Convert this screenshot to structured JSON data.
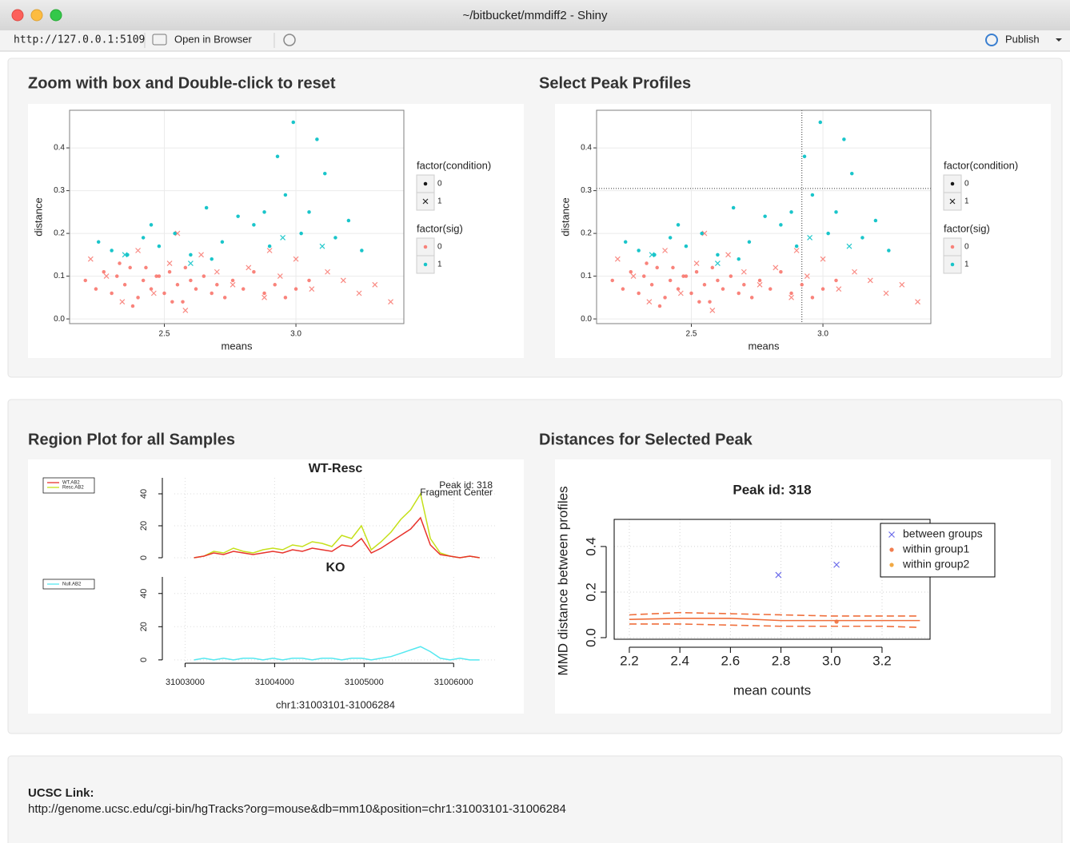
{
  "window": {
    "title": "~/bitbucket/mmdiff2 - Shiny"
  },
  "toolbar": {
    "url": "http://127.0.0.1:5109",
    "open_in_browser": "Open in Browser",
    "publish": "Publish"
  },
  "headings": [
    "Zoom with box and Double-click to reset",
    "Select Peak Profiles",
    "Region Plot for all Samples",
    "Distances for Selected Peak"
  ],
  "chart_data": [
    {
      "type": "scatter",
      "xlabel": "means",
      "ylabel": "distance",
      "xlim": [
        2.14,
        3.41
      ],
      "ylim": [
        -0.011,
        0.488
      ],
      "xticks": [
        2.5,
        {
          "value": 3,
          "label": "3.0"
        }
      ],
      "yticks": [
        {
          "value": 0,
          "label": "0.0"
        },
        0.1,
        0.2,
        0.3,
        0.4
      ],
      "grid": true,
      "series": [
        {
          "color": "#f8766d",
          "shape": "dot",
          "x": [
            2.2,
            2.24,
            2.27,
            2.3,
            2.32,
            2.35,
            2.37,
            2.4,
            2.42,
            2.45,
            2.47,
            2.5,
            2.52,
            2.55,
            2.57,
            2.6,
            2.62,
            2.65,
            2.68,
            2.7,
            2.73,
            2.76,
            2.8,
            2.84,
            2.88,
            2.92,
            2.96,
            3.0,
            3.05,
            2.33,
            2.38,
            2.43,
            2.48,
            2.53,
            2.58
          ],
          "y": [
            0.09,
            0.07,
            0.11,
            0.06,
            0.1,
            0.08,
            0.12,
            0.05,
            0.09,
            0.07,
            0.1,
            0.06,
            0.11,
            0.08,
            0.04,
            0.09,
            0.07,
            0.1,
            0.06,
            0.08,
            0.05,
            0.09,
            0.07,
            0.11,
            0.06,
            0.08,
            0.05,
            0.07,
            0.09,
            0.13,
            0.03,
            0.12,
            0.1,
            0.04,
            0.12
          ]
        },
        {
          "color": "#f8766d",
          "shape": "cross",
          "x": [
            2.22,
            2.28,
            2.34,
            2.4,
            2.46,
            2.52,
            2.58,
            2.64,
            2.7,
            2.76,
            2.82,
            2.88,
            2.94,
            3.0,
            3.06,
            3.12,
            3.18,
            3.24,
            3.3,
            3.36,
            2.55,
            2.9
          ],
          "y": [
            0.14,
            0.1,
            0.04,
            0.16,
            0.06,
            0.13,
            0.02,
            0.15,
            0.11,
            0.08,
            0.12,
            0.05,
            0.1,
            0.14,
            0.07,
            0.11,
            0.09,
            0.06,
            0.08,
            0.04,
            0.2,
            0.16
          ]
        },
        {
          "color": "#00bfc4",
          "shape": "dot",
          "x": [
            2.25,
            2.3,
            2.36,
            2.42,
            2.48,
            2.54,
            2.6,
            2.66,
            2.72,
            2.78,
            2.84,
            2.9,
            2.93,
            2.96,
            2.99,
            3.02,
            3.05,
            3.08,
            3.11,
            3.15,
            3.2,
            3.25,
            2.68,
            2.88,
            2.45
          ],
          "y": [
            0.18,
            0.16,
            0.15,
            0.19,
            0.17,
            0.2,
            0.15,
            0.26,
            0.18,
            0.24,
            0.22,
            0.17,
            0.38,
            0.29,
            0.46,
            0.2,
            0.25,
            0.42,
            0.34,
            0.19,
            0.23,
            0.16,
            0.14,
            0.25,
            0.22
          ]
        },
        {
          "color": "#00bfc4",
          "shape": "cross",
          "x": [
            2.35,
            2.6,
            2.95,
            3.1
          ],
          "y": [
            0.15,
            0.13,
            0.19,
            0.17
          ]
        }
      ],
      "legend": [
        {
          "title": "factor(condition)",
          "items": [
            {
              "label": "0",
              "shape": "dot"
            },
            {
              "label": "1",
              "shape": "cross"
            }
          ]
        },
        {
          "title": "factor(sig)",
          "items": [
            {
              "label": "0",
              "color": "#f8766d"
            },
            {
              "label": "1",
              "color": "#00bfc4"
            }
          ]
        }
      ]
    },
    {
      "type": "scatter",
      "xlabel": "means",
      "ylabel": "distance",
      "xlim": [
        2.14,
        3.41
      ],
      "ylim": [
        -0.011,
        0.488
      ],
      "xticks": [
        2.5,
        {
          "value": 3,
          "label": "3.0"
        }
      ],
      "yticks": [
        {
          "value": 0,
          "label": "0.0"
        },
        0.1,
        0.2,
        0.3,
        0.4
      ],
      "grid": true,
      "crosshair": {
        "x": 2.92,
        "y": 0.305
      },
      "series": [
        {
          "color": "#f8766d",
          "shape": "dot",
          "x": [
            2.2,
            2.24,
            2.27,
            2.3,
            2.32,
            2.35,
            2.37,
            2.4,
            2.42,
            2.45,
            2.47,
            2.5,
            2.52,
            2.55,
            2.57,
            2.6,
            2.62,
            2.65,
            2.68,
            2.7,
            2.73,
            2.76,
            2.8,
            2.84,
            2.88,
            2.92,
            2.96,
            3.0,
            3.05,
            2.33,
            2.38,
            2.43,
            2.48,
            2.53,
            2.58
          ],
          "y": [
            0.09,
            0.07,
            0.11,
            0.06,
            0.1,
            0.08,
            0.12,
            0.05,
            0.09,
            0.07,
            0.1,
            0.06,
            0.11,
            0.08,
            0.04,
            0.09,
            0.07,
            0.1,
            0.06,
            0.08,
            0.05,
            0.09,
            0.07,
            0.11,
            0.06,
            0.08,
            0.05,
            0.07,
            0.09,
            0.13,
            0.03,
            0.12,
            0.1,
            0.04,
            0.12
          ]
        },
        {
          "color": "#f8766d",
          "shape": "cross",
          "x": [
            2.22,
            2.28,
            2.34,
            2.4,
            2.46,
            2.52,
            2.58,
            2.64,
            2.7,
            2.76,
            2.82,
            2.88,
            2.94,
            3.0,
            3.06,
            3.12,
            3.18,
            3.24,
            3.3,
            3.36,
            2.55,
            2.9
          ],
          "y": [
            0.14,
            0.1,
            0.04,
            0.16,
            0.06,
            0.13,
            0.02,
            0.15,
            0.11,
            0.08,
            0.12,
            0.05,
            0.1,
            0.14,
            0.07,
            0.11,
            0.09,
            0.06,
            0.08,
            0.04,
            0.2,
            0.16
          ]
        },
        {
          "color": "#00bfc4",
          "shape": "dot",
          "x": [
            2.25,
            2.3,
            2.36,
            2.42,
            2.48,
            2.54,
            2.6,
            2.66,
            2.72,
            2.78,
            2.84,
            2.9,
            2.93,
            2.96,
            2.99,
            3.02,
            3.05,
            3.08,
            3.11,
            3.15,
            3.2,
            3.25,
            2.68,
            2.88,
            2.45
          ],
          "y": [
            0.18,
            0.16,
            0.15,
            0.19,
            0.17,
            0.2,
            0.15,
            0.26,
            0.18,
            0.24,
            0.22,
            0.17,
            0.38,
            0.29,
            0.46,
            0.2,
            0.25,
            0.42,
            0.34,
            0.19,
            0.23,
            0.16,
            0.14,
            0.25,
            0.22
          ]
        },
        {
          "color": "#00bfc4",
          "shape": "cross",
          "x": [
            2.35,
            2.6,
            2.95,
            3.1
          ],
          "y": [
            0.15,
            0.13,
            0.19,
            0.17
          ]
        }
      ],
      "legend": [
        {
          "title": "factor(condition)",
          "items": [
            {
              "label": "0",
              "shape": "dot"
            },
            {
              "label": "1",
              "shape": "cross"
            }
          ]
        },
        {
          "title": "factor(sig)",
          "items": [
            {
              "label": "0",
              "color": "#f8766d"
            },
            {
              "label": "1",
              "color": "#00bfc4"
            }
          ]
        }
      ]
    },
    {
      "type": "line",
      "xlabel": "chr1:31003101-31006284",
      "xlim": [
        31002880,
        31006480
      ],
      "xticks": [
        31003000,
        31004000,
        31005000,
        31006000
      ],
      "ylim": [
        -2,
        50
      ],
      "yticks": [
        0,
        20,
        40
      ],
      "grid": true,
      "annotations": [
        "Peak id: 318",
        "Fragment Center"
      ],
      "x": [
        31003100,
        31003210,
        31003320,
        31003430,
        31003540,
        31003650,
        31003760,
        31003870,
        31003980,
        31004090,
        31004200,
        31004310,
        31004420,
        31004530,
        31004640,
        31004750,
        31004860,
        31004970,
        31005080,
        31005190,
        31005300,
        31005410,
        31005520,
        31005630,
        31005740,
        31005850,
        31005960,
        31006070,
        31006180,
        31006290
      ],
      "panels": [
        {
          "title": "WT-Resc",
          "series": [
            {
              "name": "WT.AB2",
              "color": "#e8332c",
              "values": [
                0,
                1,
                3,
                2,
                4,
                3,
                2,
                3,
                4,
                3,
                5,
                4,
                6,
                5,
                4,
                8,
                7,
                12,
                3,
                6,
                10,
                14,
                18,
                25,
                8,
                2,
                1,
                0,
                1,
                0
              ]
            },
            {
              "name": "Resc.AB2",
              "color": "#c5e01a",
              "values": [
                0,
                1,
                4,
                3,
                6,
                4,
                3,
                5,
                6,
                5,
                8,
                7,
                10,
                9,
                7,
                14,
                12,
                20,
                5,
                10,
                16,
                24,
                30,
                40,
                12,
                3,
                1,
                0,
                1,
                0
              ]
            }
          ]
        },
        {
          "title": "KO",
          "series": [
            {
              "name": "Null.AB2",
              "color": "#55e8f0",
              "values": [
                0,
                1,
                0,
                1,
                0,
                1,
                1,
                0,
                1,
                0,
                1,
                1,
                0,
                1,
                1,
                0,
                1,
                1,
                0,
                1,
                2,
                4,
                6,
                8,
                5,
                1,
                0,
                1,
                0,
                0
              ]
            }
          ]
        }
      ]
    },
    {
      "type": "scatter",
      "title": "Peak id: 318",
      "xlabel": "mean counts",
      "ylabel": "MMD distance between profiles",
      "xlim": [
        2.14,
        3.39
      ],
      "ylim": [
        -0.007,
        0.519
      ],
      "xticks": [
        2.2,
        2.4,
        2.6,
        2.8,
        {
          "value": 3,
          "label": "3.0"
        },
        3.2
      ],
      "yticks": [
        {
          "value": 0,
          "label": "0.0"
        },
        0.2,
        0.4
      ],
      "grid": true,
      "series": [
        {
          "name": "between groups",
          "color": "#5050e6",
          "shape": "cross",
          "x": [
            2.79,
            3.02
          ],
          "y": [
            0.275,
            0.32
          ]
        },
        {
          "name": "within group1",
          "color": "#ef6f3c",
          "shape": "dot",
          "x": [
            3.02
          ],
          "y": [
            0.07
          ]
        },
        {
          "name": "within group2",
          "color": "#f0a030",
          "shape": "dot",
          "x": [],
          "y": []
        }
      ],
      "lines": [
        {
          "color": "#ef6f3c",
          "dashed": false,
          "x": [
            2.2,
            2.4,
            2.6,
            2.8,
            3.0,
            3.2,
            3.35
          ],
          "y": [
            0.08,
            0.085,
            0.085,
            0.075,
            0.075,
            0.075,
            0.075
          ]
        },
        {
          "color": "#ef6f3c",
          "dashed": true,
          "x": [
            2.2,
            2.4,
            2.6,
            2.8,
            3.0,
            3.2,
            3.35
          ],
          "y": [
            0.1,
            0.11,
            0.105,
            0.1,
            0.095,
            0.095,
            0.095
          ]
        },
        {
          "color": "#ef6f3c",
          "dashed": true,
          "x": [
            2.2,
            2.4,
            2.6,
            2.8,
            3.0,
            3.2,
            3.35
          ],
          "y": [
            0.06,
            0.06,
            0.055,
            0.05,
            0.05,
            0.05,
            0.045
          ]
        }
      ]
    }
  ],
  "ucsc": {
    "label": "UCSC Link:",
    "link": "http://genome.ucsc.edu/cgi-bin/hgTracks?org=mouse&db=mm10&position=chr1:31003101-31006284"
  }
}
